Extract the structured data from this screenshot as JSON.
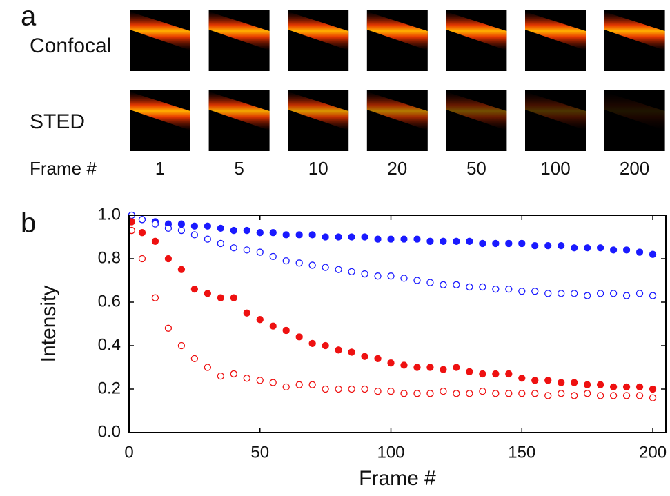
{
  "panel_labels": [
    "a",
    "b"
  ],
  "panel_a": {
    "rows": [
      "Confocal",
      "STED"
    ],
    "frame_label": "Frame #",
    "frames": [
      1,
      5,
      10,
      20,
      50,
      100,
      200
    ]
  },
  "chart_data": {
    "type": "scatter",
    "xlabel": "Frame #",
    "ylabel": "Intensity",
    "xlim": [
      0,
      205
    ],
    "xticks": [
      0,
      50,
      100,
      150,
      200
    ],
    "ylim": [
      0,
      1
    ],
    "yticks": [
      {
        "value": 0,
        "label": "0.0"
      },
      {
        "value": 0.2,
        "label": "0.2"
      },
      {
        "value": 0.4,
        "label": "0.4"
      },
      {
        "value": 0.6,
        "label": "0.6"
      },
      {
        "value": 0.8,
        "label": "0.8"
      },
      {
        "value": 1,
        "label": "1.0"
      }
    ],
    "x": [
      1,
      5,
      10,
      15,
      20,
      25,
      30,
      35,
      40,
      45,
      50,
      55,
      60,
      65,
      70,
      75,
      80,
      85,
      90,
      95,
      100,
      105,
      110,
      115,
      120,
      125,
      130,
      135,
      140,
      145,
      150,
      155,
      160,
      165,
      170,
      175,
      180,
      185,
      190,
      195,
      200
    ],
    "series": [
      {
        "color": "#1a1aff",
        "filled": true,
        "values": [
          1.0,
          0.98,
          0.97,
          0.96,
          0.96,
          0.95,
          0.95,
          0.94,
          0.93,
          0.93,
          0.92,
          0.92,
          0.91,
          0.91,
          0.91,
          0.9,
          0.9,
          0.9,
          0.9,
          0.89,
          0.89,
          0.89,
          0.89,
          0.88,
          0.88,
          0.88,
          0.88,
          0.87,
          0.87,
          0.87,
          0.87,
          0.86,
          0.86,
          0.86,
          0.85,
          0.85,
          0.85,
          0.84,
          0.84,
          0.83,
          0.82
        ]
      },
      {
        "color": "#1a1aff",
        "filled": false,
        "values": [
          1.0,
          0.98,
          0.96,
          0.94,
          0.93,
          0.91,
          0.89,
          0.87,
          0.85,
          0.84,
          0.83,
          0.81,
          0.79,
          0.78,
          0.77,
          0.76,
          0.75,
          0.74,
          0.73,
          0.72,
          0.72,
          0.71,
          0.7,
          0.69,
          0.68,
          0.68,
          0.67,
          0.67,
          0.66,
          0.66,
          0.65,
          0.65,
          0.64,
          0.64,
          0.64,
          0.63,
          0.64,
          0.64,
          0.63,
          0.64,
          0.63
        ]
      },
      {
        "color": "#ee1111",
        "filled": true,
        "values": [
          0.97,
          0.92,
          0.88,
          0.8,
          0.75,
          0.66,
          0.64,
          0.62,
          0.62,
          0.55,
          0.52,
          0.49,
          0.47,
          0.44,
          0.41,
          0.4,
          0.38,
          0.37,
          0.35,
          0.34,
          0.32,
          0.31,
          0.3,
          0.3,
          0.29,
          0.3,
          0.28,
          0.27,
          0.27,
          0.27,
          0.25,
          0.24,
          0.24,
          0.23,
          0.23,
          0.22,
          0.22,
          0.21,
          0.21,
          0.21,
          0.2
        ]
      },
      {
        "color": "#ee1111",
        "filled": false,
        "values": [
          0.93,
          0.8,
          0.62,
          0.48,
          0.4,
          0.34,
          0.3,
          0.26,
          0.27,
          0.25,
          0.24,
          0.23,
          0.21,
          0.22,
          0.22,
          0.2,
          0.2,
          0.2,
          0.2,
          0.19,
          0.19,
          0.18,
          0.18,
          0.18,
          0.19,
          0.18,
          0.18,
          0.19,
          0.18,
          0.18,
          0.18,
          0.18,
          0.17,
          0.18,
          0.17,
          0.18,
          0.17,
          0.17,
          0.17,
          0.17,
          0.16
        ]
      }
    ]
  }
}
